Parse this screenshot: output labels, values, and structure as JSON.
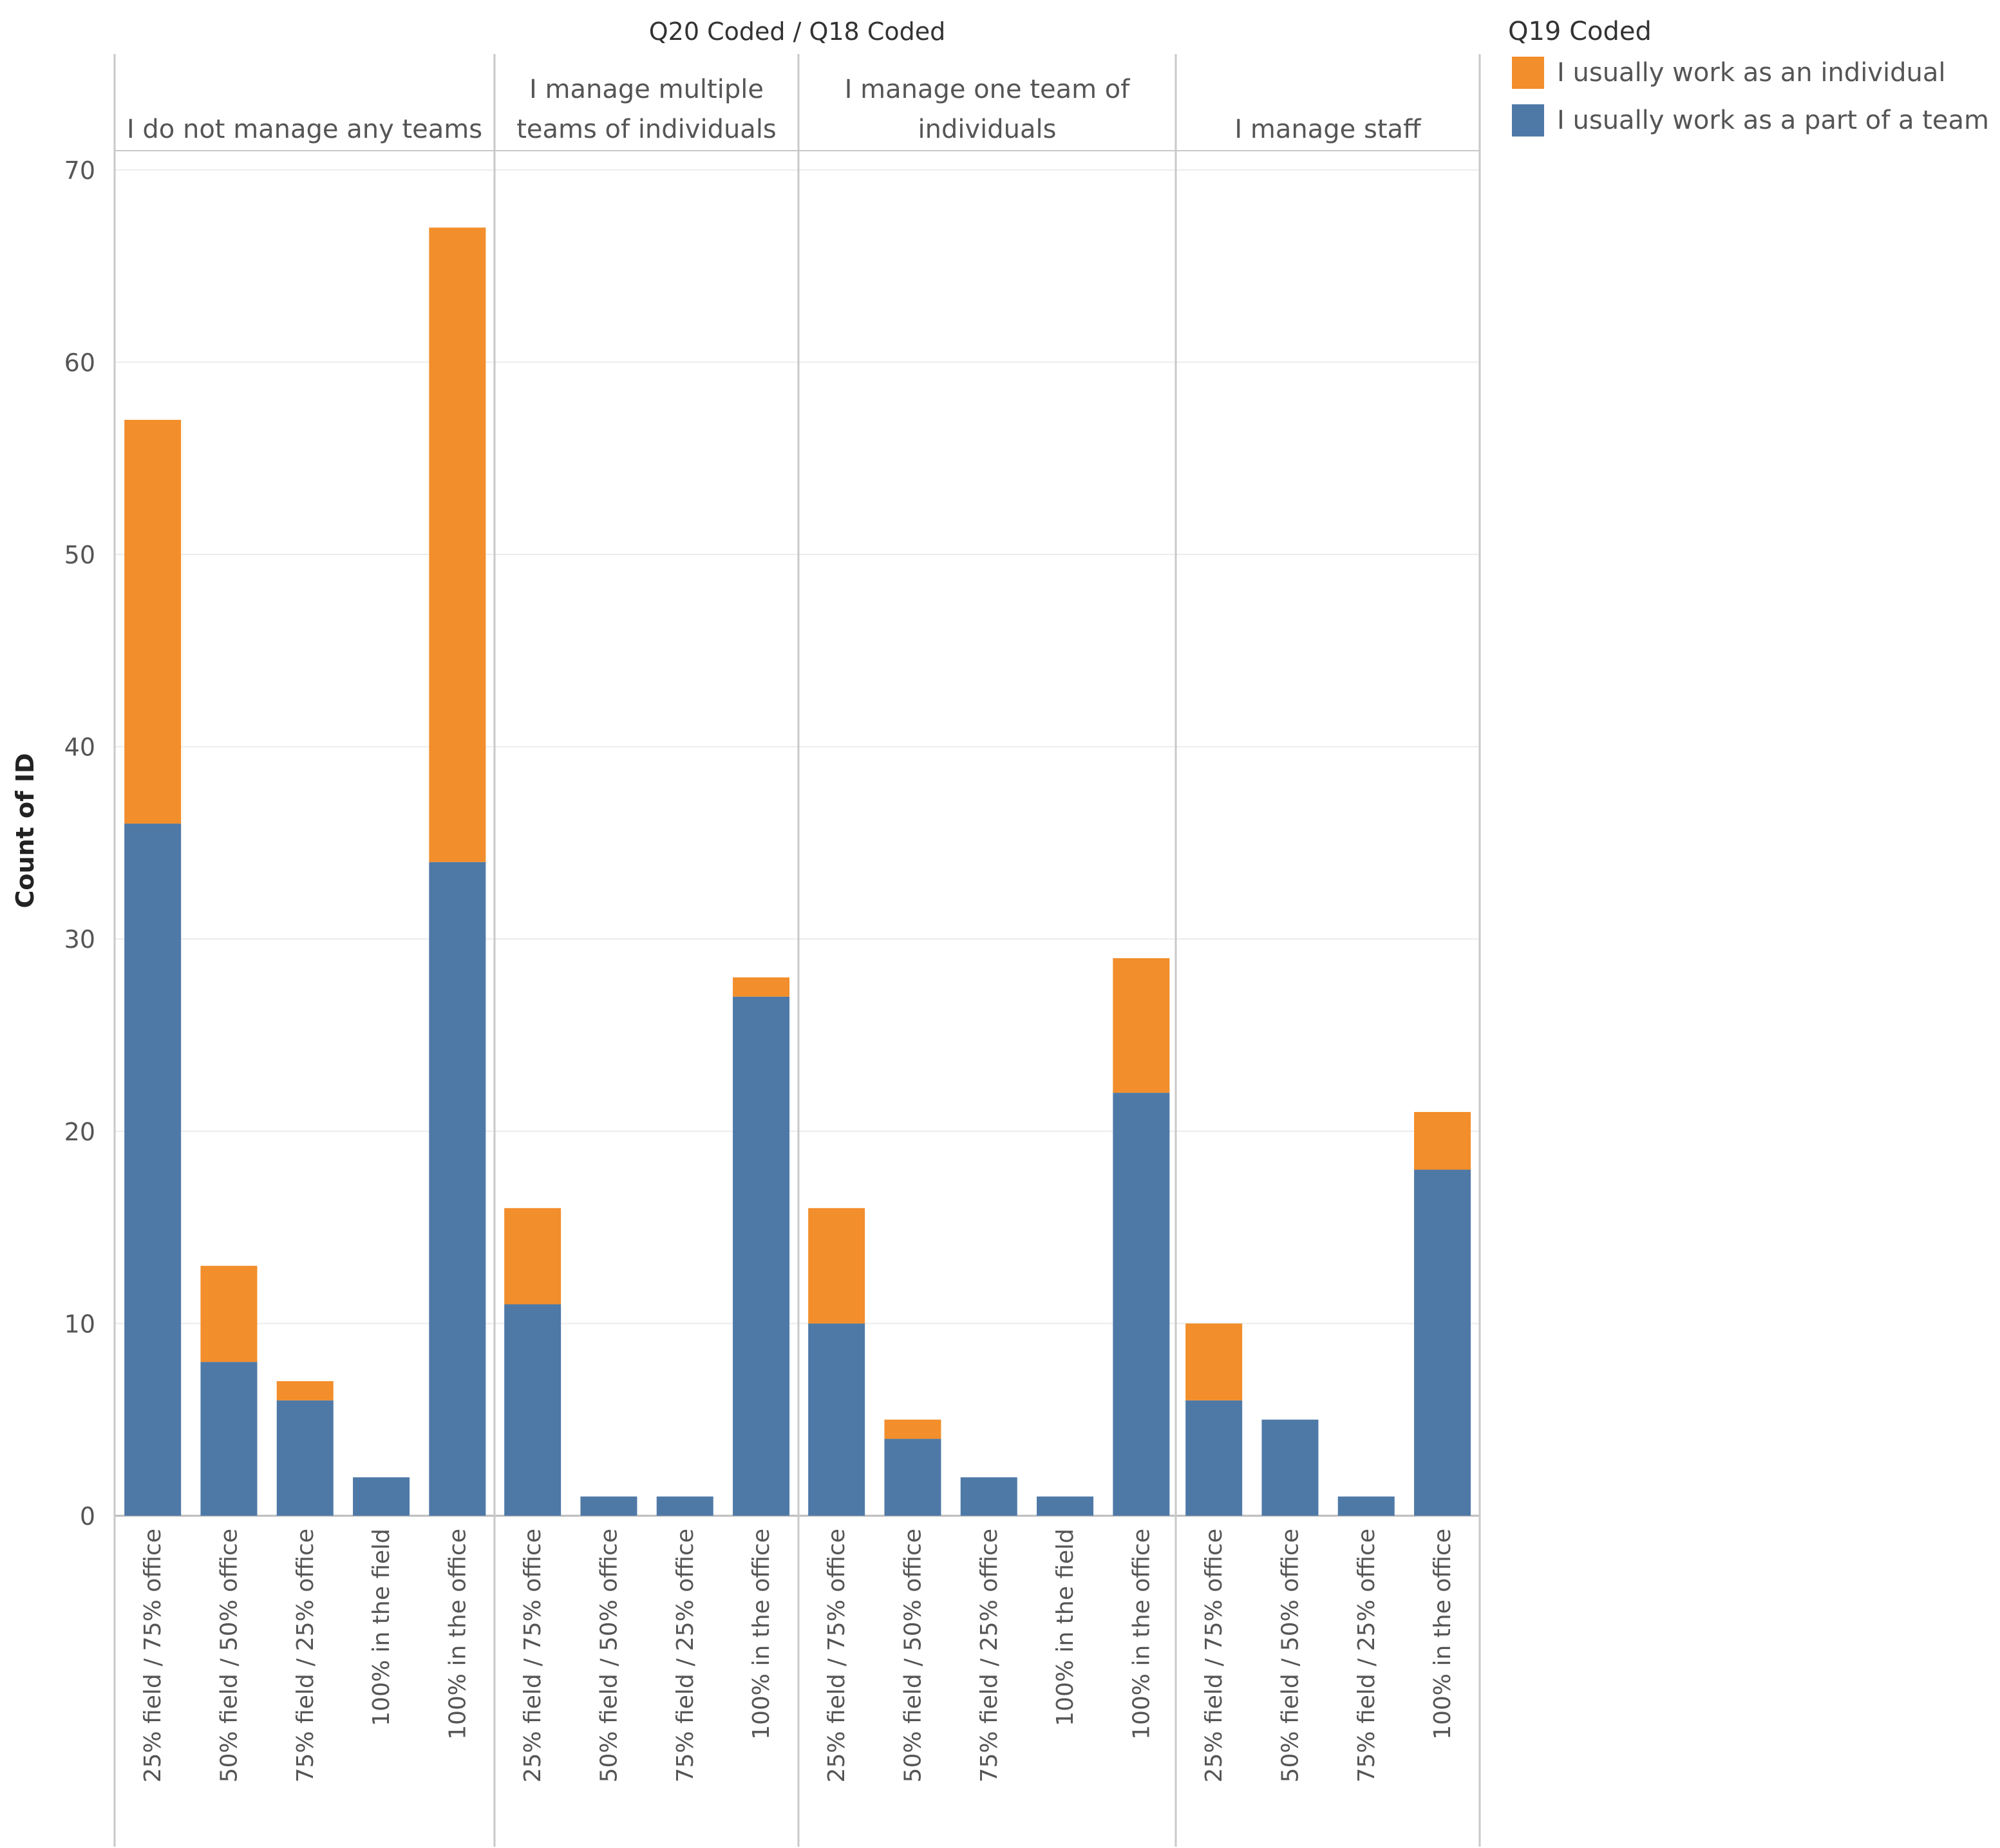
{
  "chart_data": {
    "type": "bar",
    "stacked": true,
    "title": "Q20 Coded  /  Q18 Coded",
    "ylabel": "Count of ID",
    "ylim": [
      0,
      71
    ],
    "yticks": [
      0,
      10,
      20,
      30,
      40,
      50,
      60,
      70
    ],
    "grid": true,
    "legend": {
      "title": "Q19 Coded",
      "position": "top-right",
      "items": [
        {
          "label": "I usually work as an individual",
          "color": "#F28E2B"
        },
        {
          "label": "I usually work as a part of a team",
          "color": "#4E79A7"
        }
      ]
    },
    "panels": [
      {
        "label_lines": [
          "I do not manage any teams"
        ],
        "categories": [
          "25% field / 75% office",
          "50% field / 50% office",
          "75% field / 25% office",
          "100% in the field",
          "100% in the office"
        ],
        "series": [
          {
            "name": "I usually work as a part of a team",
            "values": [
              36,
              8,
              6,
              2,
              34
            ]
          },
          {
            "name": "I usually work as an individual",
            "values": [
              21,
              5,
              1,
              0,
              33
            ]
          }
        ]
      },
      {
        "label_lines": [
          "I manage multiple",
          "teams of individuals"
        ],
        "categories": [
          "25% field / 75% office",
          "50% field / 50% office",
          "75% field / 25% office",
          "100% in the office"
        ],
        "series": [
          {
            "name": "I usually work as a part of a team",
            "values": [
              11,
              1,
              1,
              27
            ]
          },
          {
            "name": "I usually work as an individual",
            "values": [
              5,
              0,
              0,
              1
            ]
          }
        ]
      },
      {
        "label_lines": [
          "I manage one team of",
          "individuals"
        ],
        "categories": [
          "25% field / 75% office",
          "50% field / 50% office",
          "75% field / 25% office",
          "100% in the field",
          "100% in the office"
        ],
        "series": [
          {
            "name": "I usually work as a part of a team",
            "values": [
              10,
              4,
              2,
              1,
              22
            ]
          },
          {
            "name": "I usually work as an individual",
            "values": [
              6,
              1,
              0,
              0,
              7
            ]
          }
        ]
      },
      {
        "label_lines": [
          "I manage staff"
        ],
        "categories": [
          "25% field / 75% office",
          "50% field / 50% office",
          "75% field / 25% office",
          "100% in the office"
        ],
        "series": [
          {
            "name": "I usually work as a part of a team",
            "values": [
              6,
              5,
              1,
              18
            ]
          },
          {
            "name": "I usually work as an individual",
            "values": [
              4,
              0,
              0,
              3
            ]
          }
        ]
      }
    ]
  }
}
